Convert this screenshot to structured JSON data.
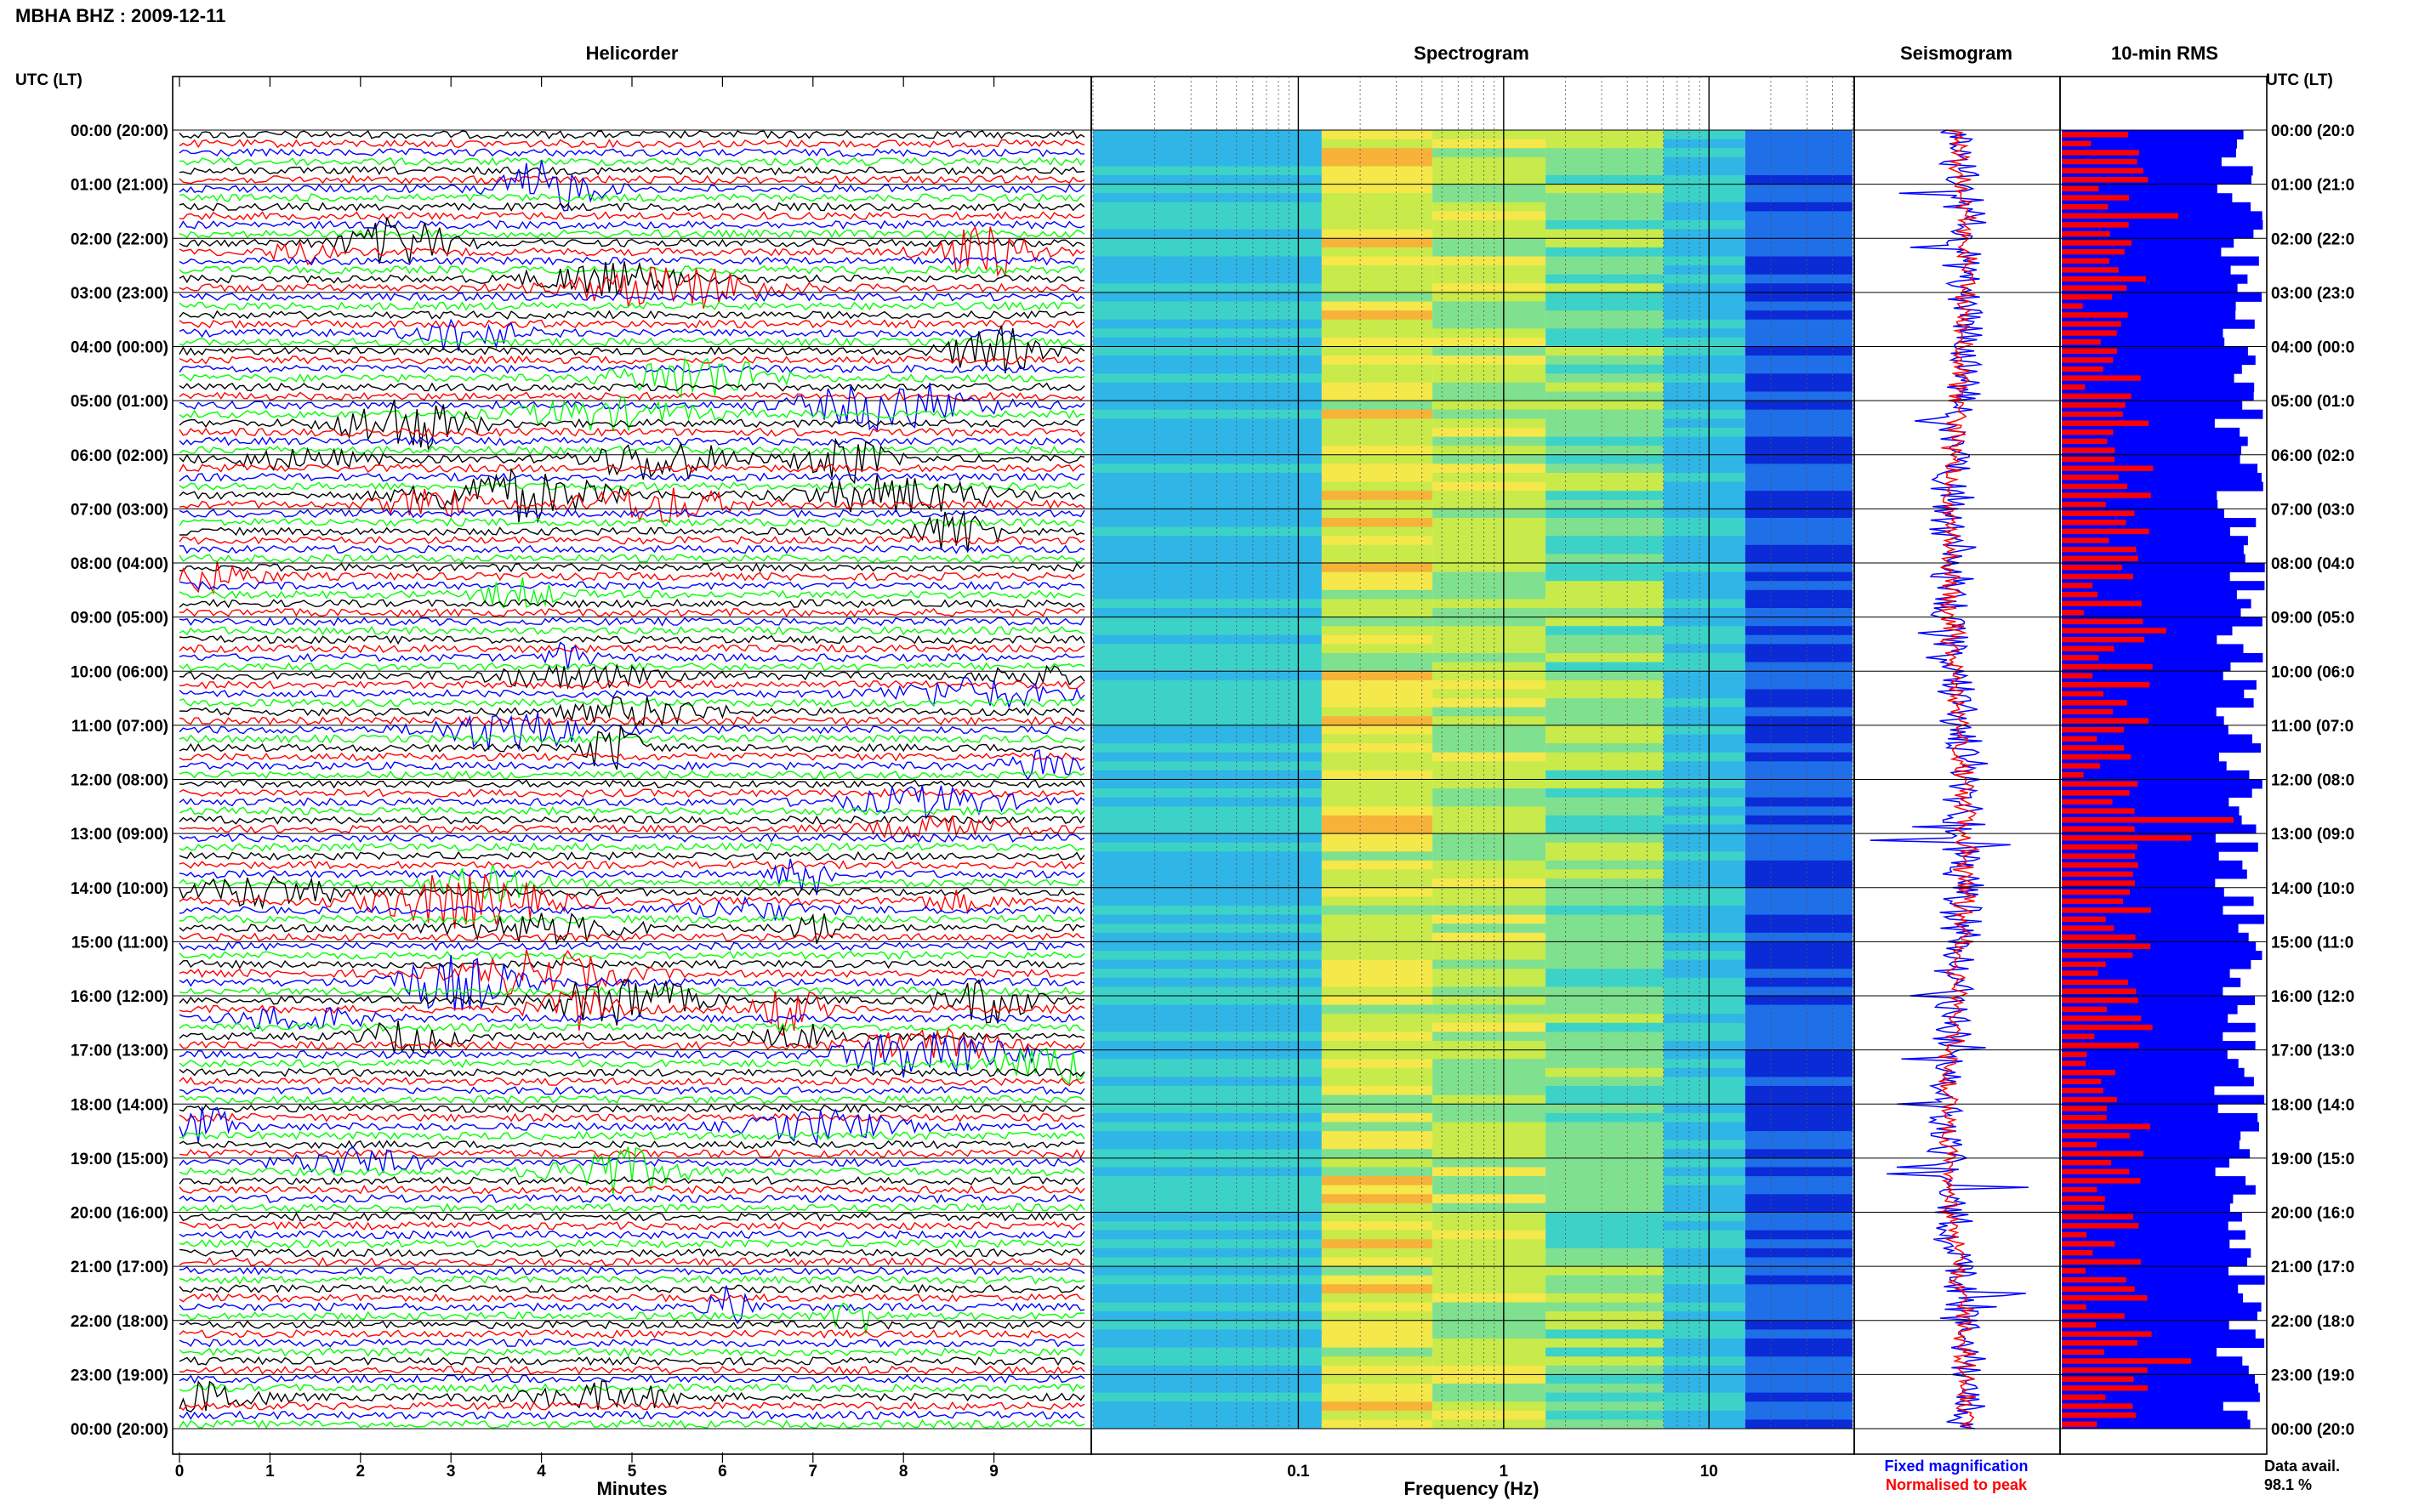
{
  "header": {
    "station_title": "MBHA BHZ : 2009-12-11",
    "utc_lt_left": "UTC (LT)",
    "utc_lt_right": "UTC (LT)"
  },
  "panels": {
    "helicorder": "Helicorder",
    "spectrogram": "Spectrogram",
    "seismogram": "Seismogram",
    "rms": "10-min RMS"
  },
  "time_labels": [
    "00:00 (20:00)",
    "01:00 (21:00)",
    "02:00 (22:00)",
    "03:00 (23:00)",
    "04:00 (00:00)",
    "05:00 (01:00)",
    "06:00 (02:00)",
    "07:00 (03:00)",
    "08:00 (04:00)",
    "09:00 (05:00)",
    "10:00 (06:00)",
    "11:00 (07:00)",
    "12:00 (08:00)",
    "13:00 (09:00)",
    "14:00 (10:00)",
    "15:00 (11:00)",
    "16:00 (12:00)",
    "17:00 (13:00)",
    "18:00 (14:00)",
    "19:00 (15:00)",
    "20:00 (16:00)",
    "21:00 (17:00)",
    "22:00 (18:00)",
    "23:00 (19:00)",
    "00:00 (20:00)"
  ],
  "time_labels_right": [
    "00:00 (20:0",
    "01:00 (21:0",
    "02:00 (22:0",
    "03:00 (23:0",
    "04:00 (00:0",
    "05:00 (01:0",
    "06:00 (02:0",
    "07:00 (03:0",
    "08:00 (04:0",
    "09:00 (05:0",
    "10:00 (06:0",
    "11:00 (07:0",
    "12:00 (08:0",
    "13:00 (09:0",
    "14:00 (10:0",
    "15:00 (11:0",
    "16:00 (12:0",
    "17:00 (13:0",
    "18:00 (14:0",
    "19:00 (15:0",
    "20:00 (16:0",
    "21:00 (17:0",
    "22:00 (18:0",
    "23:00 (19:0",
    "00:00 (20:0"
  ],
  "chart_data": [
    {
      "type": "line",
      "panel": "helicorder",
      "title": "Helicorder",
      "xlabel": "Minutes",
      "x_ticks": [
        "0",
        "1",
        "2",
        "3",
        "4",
        "5",
        "6",
        "7",
        "8",
        "9"
      ],
      "xlim": [
        0,
        10
      ],
      "rows_per_hour": 6,
      "hours": 24,
      "series_colors": [
        "#000000",
        "#ff0000",
        "#0000ff",
        "#00ff00"
      ]
    },
    {
      "type": "heatmap",
      "panel": "spectrogram",
      "title": "Spectrogram",
      "xlabel": "Frequency (Hz)",
      "x_ticks": [
        "0.1",
        "1",
        "10"
      ],
      "x_scale": "log",
      "xlim": [
        0.01,
        50
      ]
    },
    {
      "type": "line",
      "panel": "seismogram",
      "title": "Seismogram",
      "legend": [
        {
          "name": "Fixed magnification",
          "color": "#0000ff"
        },
        {
          "name": "Normalised to peak",
          "color": "#ff0000"
        }
      ]
    },
    {
      "type": "bar",
      "panel": "rms",
      "title": "10-min RMS",
      "data_availability_label": "Data avail.",
      "data_availability_value": "98.1 %",
      "series_colors": {
        "fixed": "#0000ff",
        "normalised": "#ff0000"
      }
    }
  ]
}
